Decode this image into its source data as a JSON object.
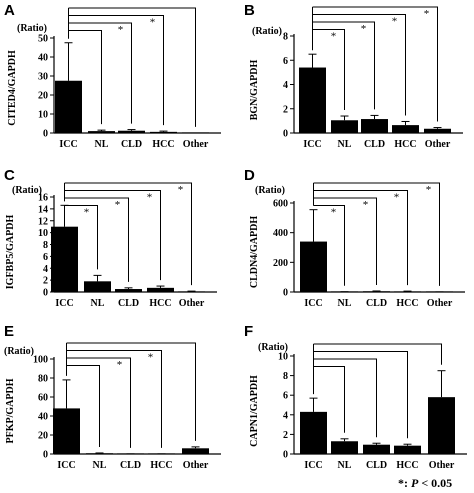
{
  "footnote": {
    "prefix": "*: ",
    "p_label": "P",
    "suffix": " < 0.05"
  },
  "chart_data": [
    {
      "panel": "A",
      "type": "bar",
      "unit_label": "(Ratio)",
      "ylabel": "CITED4/GAPDH",
      "categories": [
        "ICC",
        "NL",
        "CLD",
        "HCC",
        "Other"
      ],
      "values": [
        27.5,
        1.0,
        1.2,
        0.6,
        0.05
      ],
      "errors": [
        20,
        0.5,
        0.6,
        0.4,
        0.0
      ],
      "ylim": [
        0,
        50
      ],
      "yticks": [
        0,
        10,
        20,
        30,
        40,
        50
      ],
      "comparisons": [
        {
          "to": 1,
          "star": false
        },
        {
          "to": 2,
          "star": true
        },
        {
          "to": 3,
          "star": true
        },
        {
          "to": 4,
          "star": false
        }
      ]
    },
    {
      "panel": "B",
      "type": "bar",
      "unit_label": "(Ratio)",
      "ylabel": "BGN/GAPDH",
      "categories": [
        "ICC",
        "NL",
        "CLD",
        "HCC",
        "Other"
      ],
      "values": [
        5.4,
        1.05,
        1.15,
        0.65,
        0.35
      ],
      "errors": [
        1.1,
        0.35,
        0.3,
        0.3,
        0.1
      ],
      "ylim": [
        0,
        8
      ],
      "yticks": [
        0,
        2,
        4,
        6,
        8
      ],
      "comparisons": [
        {
          "to": 1,
          "star": true
        },
        {
          "to": 2,
          "star": true
        },
        {
          "to": 3,
          "star": true
        },
        {
          "to": 4,
          "star": true
        }
      ]
    },
    {
      "panel": "C",
      "type": "bar",
      "unit_label": "(Ratio)",
      "ylabel": "IGFBP5/GAPDH",
      "categories": [
        "ICC",
        "NL",
        "CLD",
        "HCC",
        "Other"
      ],
      "values": [
        11.0,
        1.8,
        0.5,
        0.7,
        0.1
      ],
      "errors": [
        3.6,
        1.0,
        0.2,
        0.3,
        0.05
      ],
      "ylim": [
        0,
        16
      ],
      "yticks": [
        0,
        2,
        4,
        6,
        8,
        10,
        12,
        14,
        16
      ],
      "comparisons": [
        {
          "to": 1,
          "star": true
        },
        {
          "to": 2,
          "star": true
        },
        {
          "to": 3,
          "star": true
        },
        {
          "to": 4,
          "star": true
        }
      ]
    },
    {
      "panel": "D",
      "type": "bar",
      "unit_label": "(Ratio)",
      "ylabel": "CLDN4/GAPDH",
      "categories": [
        "ICC",
        "NL",
        "CLD",
        "HCC",
        "Other"
      ],
      "values": [
        340,
        1,
        5,
        4,
        0.5
      ],
      "errors": [
        215,
        1,
        2,
        2,
        0.3
      ],
      "ylim": [
        0,
        600
      ],
      "yticks": [
        0,
        200,
        400,
        600
      ],
      "comparisons": [
        {
          "to": 1,
          "star": true
        },
        {
          "to": 2,
          "star": true
        },
        {
          "to": 3,
          "star": true
        },
        {
          "to": 4,
          "star": true
        }
      ]
    },
    {
      "panel": "E",
      "type": "bar",
      "unit_label": "(Ratio)",
      "ylabel": "PFKP/GAPDH",
      "categories": [
        "ICC",
        "NL",
        "CLD",
        "HCC",
        "Other"
      ],
      "values": [
        48,
        0.8,
        0.1,
        0.1,
        6.0
      ],
      "errors": [
        30,
        0.3,
        0.05,
        0.05,
        1.5
      ],
      "ylim": [
        0,
        100
      ],
      "yticks": [
        0,
        20,
        40,
        60,
        80,
        100
      ],
      "comparisons": [
        {
          "to": 1,
          "star": false
        },
        {
          "to": 2,
          "star": true
        },
        {
          "to": 3,
          "star": true
        },
        {
          "to": 4,
          "star": false
        }
      ]
    },
    {
      "panel": "F",
      "type": "bar",
      "unit_label": "(Ratio)",
      "ylabel": "CAPN1/GAPDH",
      "categories": [
        "ICC",
        "NL",
        "CLD",
        "HCC",
        "Other"
      ],
      "values": [
        4.3,
        1.3,
        0.95,
        0.85,
        5.8
      ],
      "errors": [
        1.4,
        0.25,
        0.15,
        0.15,
        2.7
      ],
      "ylim": [
        0,
        10
      ],
      "yticks": [
        0,
        2,
        4,
        6,
        8,
        10
      ],
      "comparisons": [
        {
          "to": 1,
          "star": false
        },
        {
          "to": 2,
          "star": false
        },
        {
          "to": 3,
          "star": false
        },
        {
          "to": 4,
          "star": false
        }
      ]
    }
  ]
}
